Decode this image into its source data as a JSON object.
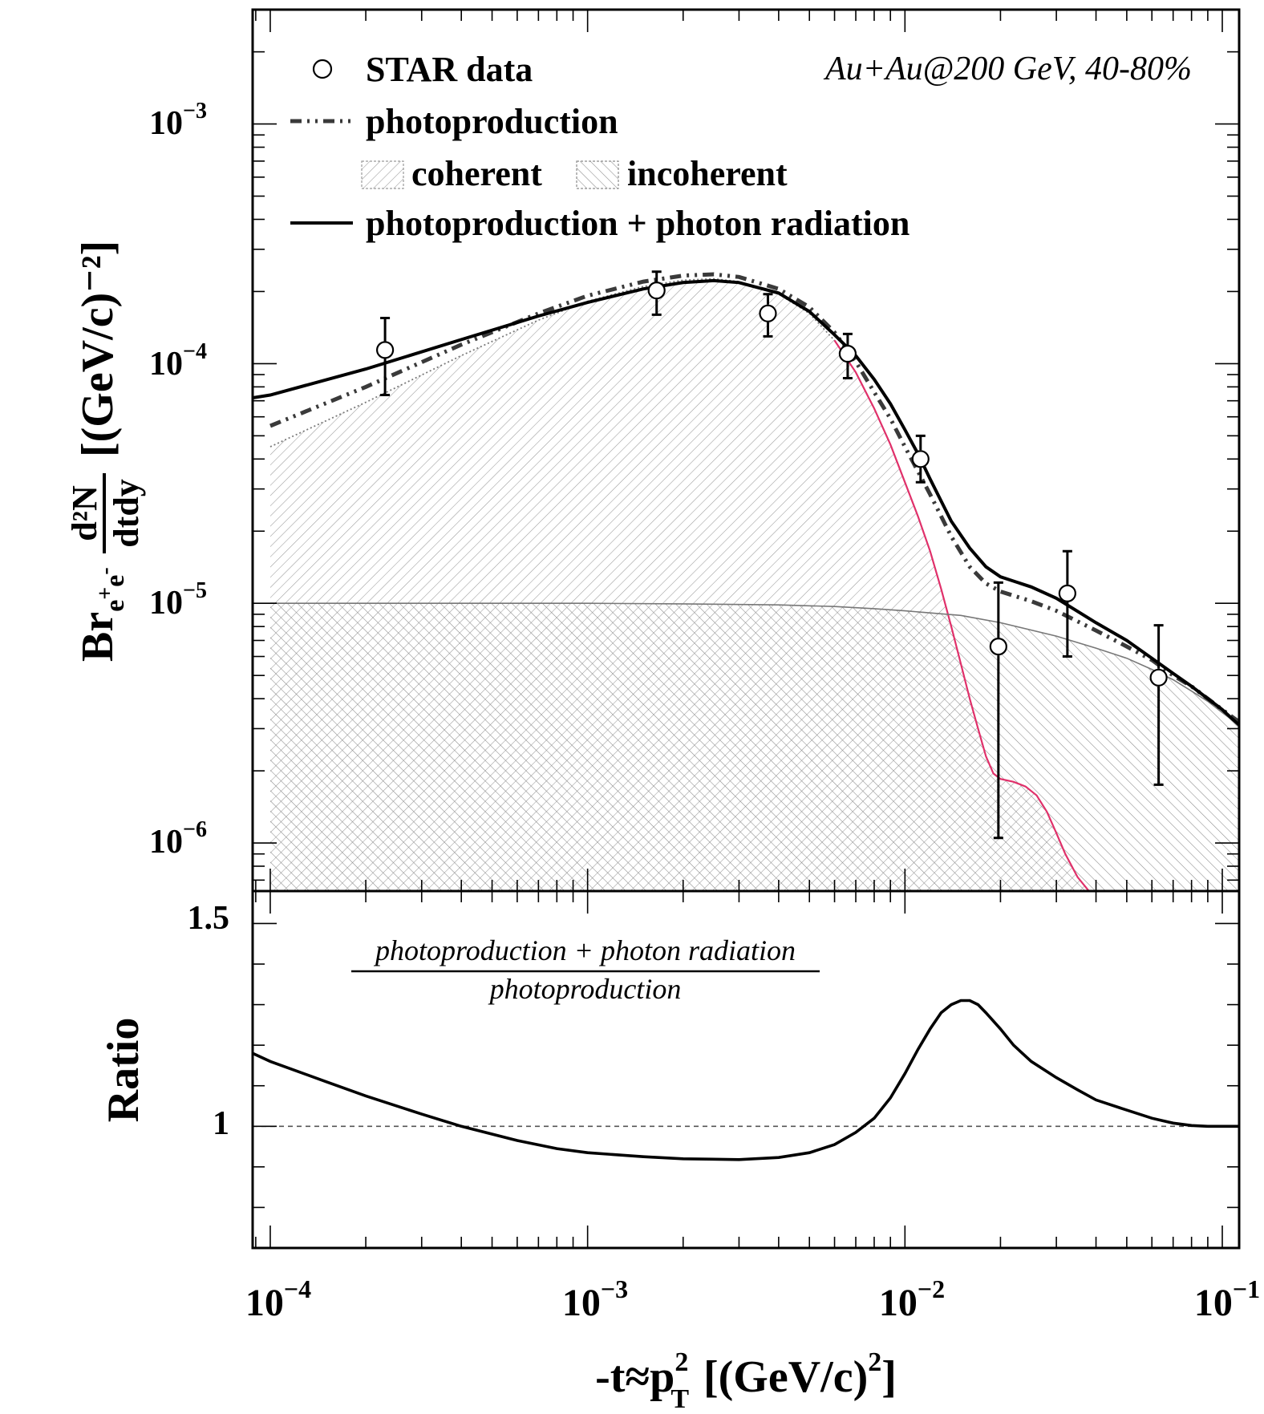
{
  "chart_data": [
    {
      "type": "line",
      "panel": "top",
      "x_scale": "log",
      "y_scale": "log",
      "xlim": [
        8.8e-05,
        0.113
      ],
      "ylim": [
        6.3e-07,
        0.003
      ],
      "ylabel": {
        "prefix": "Br",
        "subscript": "e",
        "sub_sup1": "+",
        "sub_mid": "e",
        "sub_sup2": "-",
        "fraction_numerator": "d²N",
        "fraction_denominator": "dtdy",
        "units": "[(GeV/c)⁻²]"
      },
      "y_tick_labels": [
        {
          "value": 0.001,
          "base": "10",
          "exp": "−3"
        },
        {
          "value": 0.0001,
          "base": "10",
          "exp": "−4"
        },
        {
          "value": 1e-05,
          "base": "10",
          "exp": "−5"
        },
        {
          "value": 1e-06,
          "base": "10",
          "exp": "−6"
        }
      ],
      "annotation": "Au+Au@200 GeV, 40-80%",
      "legend": {
        "star": "STAR data",
        "photo": "photoproduction",
        "coherent": "coherent",
        "incoherent": "incoherent",
        "total": "photoproduction + photon radiation"
      },
      "series": [
        {
          "name": "STAR data",
          "style": "open-circle",
          "x": [
            0.00023,
            0.00165,
            0.0037,
            0.0066,
            0.0112,
            0.0197,
            0.0325,
            0.063
          ],
          "y": [
            0.000114,
            0.000202,
            0.000162,
            0.00011,
            4e-05,
            6.6e-06,
            1.1e-05,
            4.9e-06
          ],
          "y_low": [
            7.4e-05,
            0.00016,
            0.00013,
            8.7e-05,
            3.2e-05,
            1.05e-06,
            6e-06,
            1.75e-06
          ],
          "y_high": [
            0.000155,
            0.000242,
            0.000195,
            0.000133,
            5e-05,
            1.22e-05,
            1.65e-05,
            8.1e-06
          ]
        },
        {
          "name": "photoproduction",
          "style": "dash-dot",
          "x": [
            0.0001,
            0.0002,
            0.0004,
            0.0007,
            0.001,
            0.0015,
            0.002,
            0.0025,
            0.003,
            0.004,
            0.005,
            0.006,
            0.007,
            0.008,
            0.009,
            0.01,
            0.012,
            0.014,
            0.016,
            0.018,
            0.02,
            0.025,
            0.03,
            0.04,
            0.05,
            0.06,
            0.07,
            0.08,
            0.1,
            0.113
          ],
          "y": [
            5.5e-05,
            8e-05,
            0.00012,
            0.000162,
            0.000192,
            0.00022,
            0.000233,
            0.000236,
            0.00023,
            0.000205,
            0.000172,
            0.000135,
            0.000102,
            7.6e-05,
            5.9e-05,
            4.5e-05,
            2.85e-05,
            1.9e-05,
            1.42e-05,
            1.21e-05,
            1.12e-05,
            1.02e-05,
            9.3e-06,
            7.7e-06,
            6.6e-06,
            5.8e-06,
            5e-06,
            4.5e-06,
            3.6e-06,
            3.2e-06
          ]
        },
        {
          "name": "coherent",
          "style": "hatched-area",
          "x": [
            0.0001,
            0.0002,
            0.0004,
            0.0007,
            0.001,
            0.0015,
            0.002,
            0.0025,
            0.003,
            0.004,
            0.005,
            0.006,
            0.007,
            0.008,
            0.009,
            0.01,
            0.011,
            0.012,
            0.013,
            0.014,
            0.015,
            0.016,
            0.017,
            0.018,
            0.019,
            0.02,
            0.022,
            0.024,
            0.026,
            0.028,
            0.03,
            0.032,
            0.035,
            0.038,
            0.04
          ],
          "y": [
            4.5e-05,
            6.9e-05,
            0.000108,
            0.000152,
            0.000182,
            0.00021,
            0.000223,
            0.000226,
            0.00022,
            0.000195,
            0.000162,
            0.000125,
            9.2e-05,
            6.5e-05,
            4.6e-05,
            3.2e-05,
            2.3e-05,
            1.65e-05,
            1.15e-05,
            8e-06,
            5.6e-06,
            4e-06,
            3e-06,
            2.3e-06,
            1.95e-06,
            1.85e-06,
            1.8e-06,
            1.72e-06,
            1.58e-06,
            1.35e-06,
            1.1e-06,
            9e-07,
            7.2e-07,
            6.3e-07,
            5.8e-07
          ]
        },
        {
          "name": "incoherent",
          "style": "hatched-area",
          "x": [
            0.0001,
            0.0005,
            0.001,
            0.002,
            0.004,
            0.006,
            0.008,
            0.01,
            0.015,
            0.02,
            0.03,
            0.04,
            0.05,
            0.06,
            0.07,
            0.08,
            0.09,
            0.1,
            0.113
          ],
          "y": [
            1e-05,
            1e-05,
            1e-05,
            9.95e-06,
            9.85e-06,
            9.7e-06,
            9.5e-06,
            9.3e-06,
            8.9e-06,
            8.3e-06,
            7.3e-06,
            6.5e-06,
            5.9e-06,
            5.3e-06,
            4.8e-06,
            4.3e-06,
            3.9e-06,
            3.5e-06,
            3.1e-06
          ]
        },
        {
          "name": "photoproduction + photon radiation",
          "style": "solid",
          "x": [
            8.8e-05,
            0.0001,
            0.0002,
            0.0004,
            0.0007,
            0.001,
            0.0015,
            0.002,
            0.0025,
            0.003,
            0.004,
            0.005,
            0.006,
            0.007,
            0.008,
            0.009,
            0.01,
            0.011,
            0.012,
            0.014,
            0.016,
            0.018,
            0.02,
            0.025,
            0.03,
            0.04,
            0.05,
            0.06,
            0.07,
            0.08,
            0.1,
            0.113
          ],
          "y": [
            7.2e-05,
            7.4e-05,
            9.5e-05,
            0.000126,
            0.000158,
            0.00018,
            0.000205,
            0.000218,
            0.000222,
            0.000218,
            0.000197,
            0.000165,
            0.000132,
            0.000108,
            8.6e-05,
            6.8e-05,
            5.3e-05,
            4.2e-05,
            3.3e-05,
            2.2e-05,
            1.7e-05,
            1.42e-05,
            1.29e-05,
            1.17e-05,
            1.05e-05,
            8.3e-06,
            7e-06,
            5.9e-06,
            5.1e-06,
            4.5e-06,
            3.6e-06,
            3.1e-06
          ]
        }
      ]
    },
    {
      "type": "line",
      "panel": "bottom",
      "x_scale": "log",
      "y_scale": "linear",
      "xlim": [
        8.8e-05,
        0.113
      ],
      "ylim": [
        0.7,
        1.58
      ],
      "ylabel": "Ratio",
      "xlabel": {
        "prefix": "-t≈p",
        "sup": "2",
        "sub": "T",
        "units": "[(GeV/c)",
        "units_sup": "2",
        "units_end": "]"
      },
      "x_tick_labels": [
        {
          "value": 0.0001,
          "base": "10",
          "exp": "−4"
        },
        {
          "value": 0.001,
          "base": "10",
          "exp": "−3"
        },
        {
          "value": 0.01,
          "base": "10",
          "exp": "−2"
        },
        {
          "value": 0.1,
          "base": "10",
          "exp": "−1"
        }
      ],
      "y_tick_labels": [
        "1.5",
        "1"
      ],
      "y_tick_values": [
        1.5,
        1.0
      ],
      "ratio_label": {
        "numerator": "photoproduction + photon radiation",
        "denominator": "photoproduction"
      },
      "reference_line": 1.0,
      "series": [
        {
          "name": "ratio",
          "x": [
            8.8e-05,
            0.0001,
            0.00015,
            0.0002,
            0.0003,
            0.0004,
            0.0006,
            0.0008,
            0.001,
            0.0015,
            0.002,
            0.003,
            0.004,
            0.005,
            0.006,
            0.007,
            0.008,
            0.009,
            0.01,
            0.011,
            0.012,
            0.013,
            0.014,
            0.015,
            0.016,
            0.017,
            0.018,
            0.02,
            0.022,
            0.025,
            0.03,
            0.035,
            0.04,
            0.05,
            0.06,
            0.07,
            0.08,
            0.09,
            0.1,
            0.113
          ],
          "y": [
            1.18,
            1.16,
            1.11,
            1.075,
            1.03,
            1.0,
            0.965,
            0.945,
            0.935,
            0.925,
            0.92,
            0.918,
            0.923,
            0.935,
            0.955,
            0.985,
            1.02,
            1.07,
            1.13,
            1.19,
            1.24,
            1.28,
            1.3,
            1.31,
            1.31,
            1.3,
            1.28,
            1.24,
            1.2,
            1.16,
            1.12,
            1.09,
            1.065,
            1.04,
            1.02,
            1.008,
            1.002,
            1.0,
            1.0,
            1.0
          ]
        }
      ]
    }
  ]
}
